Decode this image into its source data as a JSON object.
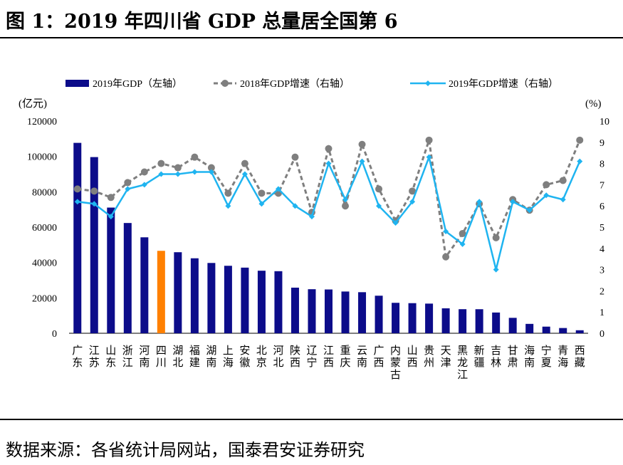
{
  "title": "图 1：2019 年四川省 GDP 总量居全国第 6",
  "source": "数据来源：各省统计局网站，国泰君安证券研究",
  "chart_data": {
    "type": "bar+line",
    "categories": [
      "广东",
      "江苏",
      "山东",
      "浙江",
      "河南",
      "四川",
      "湖北",
      "福建",
      "湖南",
      "上海",
      "安徽",
      "北京",
      "河北",
      "陕西",
      "辽宁",
      "江西",
      "重庆",
      "云南",
      "广西",
      "内蒙古",
      "山西",
      "贵州",
      "天津",
      "黑龙江",
      "新疆",
      "吉林",
      "甘肃",
      "海南",
      "宁夏",
      "青海",
      "西藏"
    ],
    "left_axis": {
      "label": "(亿元)",
      "ylim": [
        0,
        120000
      ],
      "ticks": [
        "0",
        "20000",
        "40000",
        "60000",
        "80000",
        "100000",
        "120000"
      ]
    },
    "right_axis": {
      "label": "(%)",
      "ylim": [
        0,
        10
      ],
      "ticks": [
        "0",
        "1",
        "2",
        "3",
        "4",
        "5",
        "6",
        "7",
        "8",
        "9",
        "10"
      ]
    },
    "legend_position": "top",
    "highlight_category": "四川",
    "colors": {
      "bar": "#0c0c8a",
      "highlight": "#ff8000",
      "line2018": "#7f7f7f",
      "line2019": "#1fb4f0"
    },
    "series": [
      {
        "name": "2019年GDP（左轴）",
        "type": "bar",
        "axis": "left",
        "values": [
          107671,
          99632,
          71068,
          62352,
          54259,
          46616,
          45828,
          42395,
          39752,
          38155,
          37114,
          35371,
          35105,
          25793,
          24909,
          24758,
          23606,
          23224,
          21237,
          17213,
          17027,
          16769,
          14104,
          13613,
          13597,
          11727,
          8718,
          5309,
          3748,
          2966,
          1698
        ]
      },
      {
        "name": "2018年GDP增速（右轴）",
        "type": "line",
        "style": "dashed",
        "axis": "right",
        "values": [
          6.8,
          6.7,
          6.4,
          7.1,
          7.6,
          8.0,
          7.8,
          8.3,
          7.8,
          6.6,
          8.0,
          6.6,
          6.6,
          8.3,
          5.7,
          8.7,
          6.0,
          8.9,
          6.8,
          5.3,
          6.7,
          9.1,
          3.6,
          4.7,
          6.1,
          4.5,
          6.3,
          5.8,
          7.0,
          7.2,
          9.1
        ]
      },
      {
        "name": "2019年GDP增速（右轴）",
        "type": "line",
        "style": "solid",
        "axis": "right",
        "values": [
          6.2,
          6.1,
          5.5,
          6.8,
          7.0,
          7.5,
          7.5,
          7.6,
          7.6,
          6.0,
          7.5,
          6.1,
          6.8,
          6.0,
          5.5,
          8.0,
          6.3,
          8.1,
          6.0,
          5.2,
          6.2,
          8.3,
          4.8,
          4.2,
          6.2,
          3.0,
          6.2,
          5.8,
          6.5,
          6.3,
          8.1
        ]
      }
    ]
  }
}
